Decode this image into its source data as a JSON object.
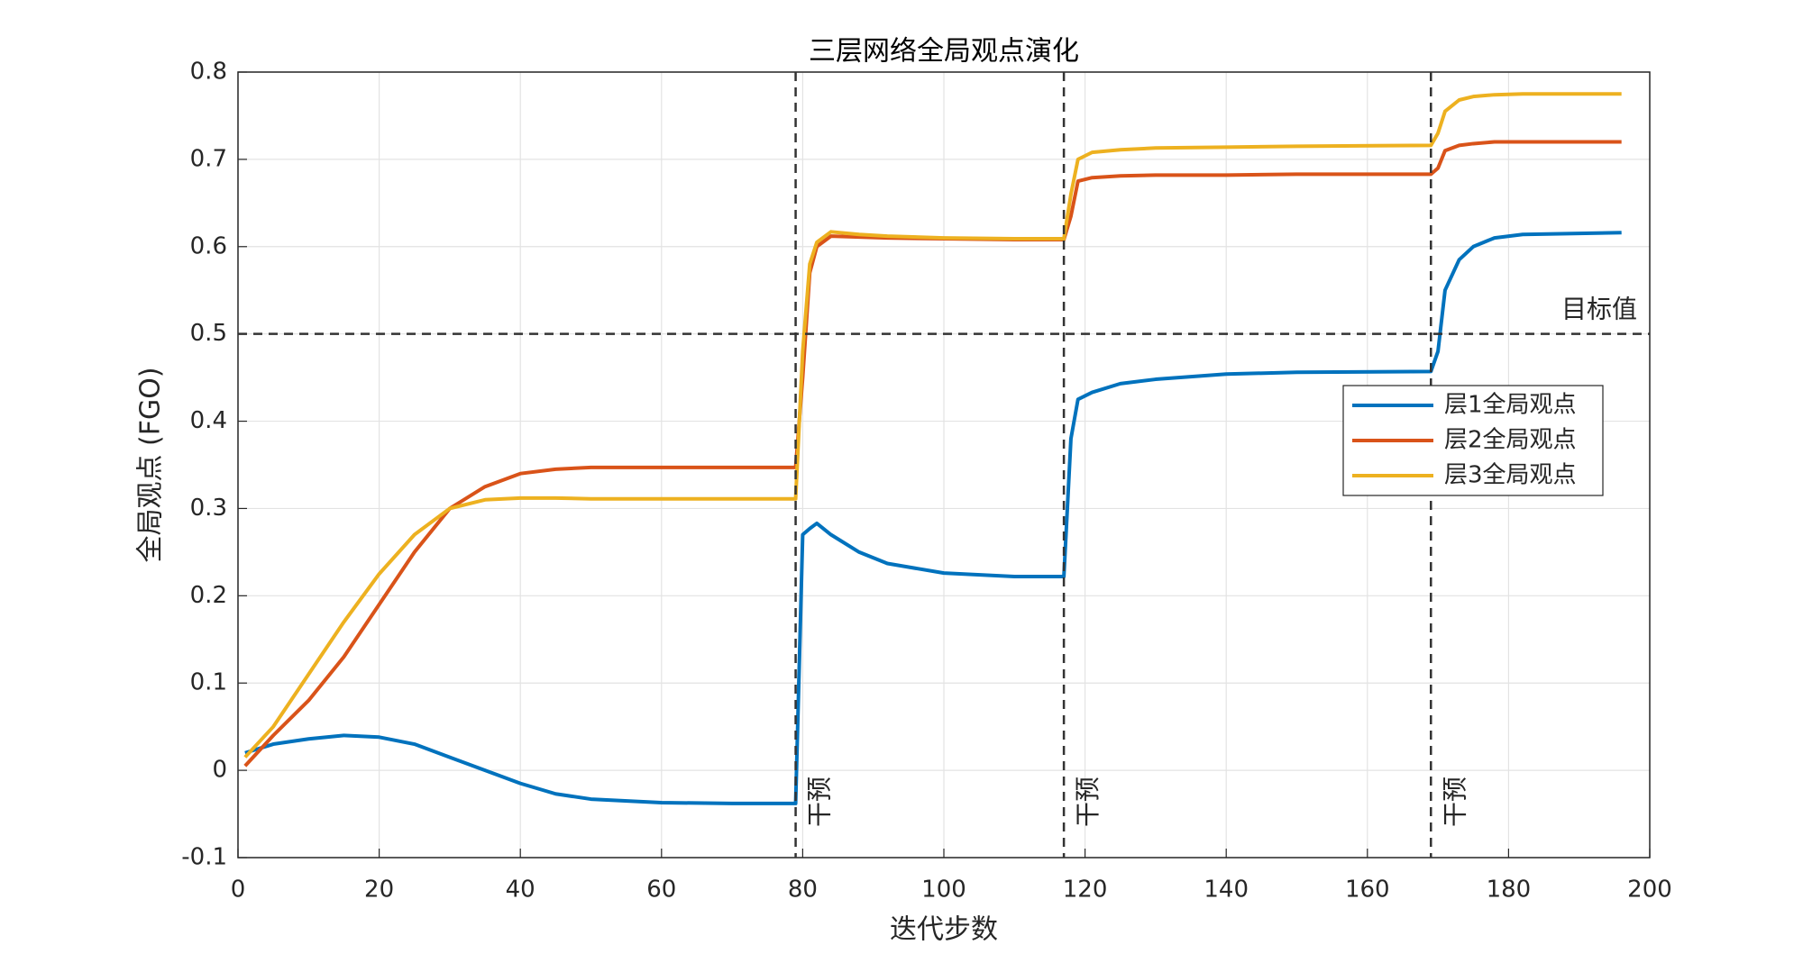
{
  "chart_data": {
    "type": "line",
    "title": "三层网络全局观点演化",
    "xlabel": "迭代步数",
    "ylabel": "全局观点 (FGO)",
    "x": [
      1,
      5,
      10,
      15,
      20,
      25,
      30,
      35,
      40,
      45,
      50,
      60,
      70,
      79,
      80,
      81,
      82,
      84,
      88,
      92,
      100,
      110,
      117,
      118,
      119,
      121,
      125,
      130,
      140,
      150,
      169,
      170,
      171,
      173,
      175,
      178,
      182,
      196
    ],
    "series": [
      {
        "name": "层1全局观点",
        "color": "#0072BD",
        "values": [
          0.02,
          0.03,
          0.036,
          0.04,
          0.038,
          0.03,
          0.015,
          0.0,
          -0.015,
          -0.027,
          -0.033,
          -0.037,
          -0.038,
          -0.038,
          0.27,
          0.277,
          0.283,
          0.27,
          0.25,
          0.237,
          0.226,
          0.222,
          0.222,
          0.38,
          0.425,
          0.433,
          0.443,
          0.448,
          0.454,
          0.456,
          0.457,
          0.48,
          0.55,
          0.585,
          0.6,
          0.61,
          0.614,
          0.616
        ]
      },
      {
        "name": "层2全局观点",
        "color": "#D95319",
        "values": [
          0.005,
          0.04,
          0.08,
          0.13,
          0.19,
          0.25,
          0.3,
          0.325,
          0.34,
          0.345,
          0.347,
          0.347,
          0.347,
          0.347,
          0.45,
          0.57,
          0.6,
          0.612,
          0.611,
          0.61,
          0.609,
          0.608,
          0.608,
          0.635,
          0.675,
          0.679,
          0.681,
          0.682,
          0.682,
          0.683,
          0.683,
          0.69,
          0.71,
          0.716,
          0.718,
          0.72,
          0.72,
          0.72
        ]
      },
      {
        "name": "层3全局观点",
        "color": "#EDB120",
        "values": [
          0.015,
          0.05,
          0.11,
          0.17,
          0.225,
          0.27,
          0.3,
          0.31,
          0.312,
          0.312,
          0.311,
          0.311,
          0.311,
          0.311,
          0.48,
          0.58,
          0.605,
          0.617,
          0.614,
          0.612,
          0.61,
          0.609,
          0.609,
          0.66,
          0.7,
          0.708,
          0.711,
          0.713,
          0.714,
          0.715,
          0.716,
          0.73,
          0.755,
          0.768,
          0.772,
          0.774,
          0.775,
          0.775
        ]
      }
    ],
    "target": {
      "value": 0.5,
      "label": "目标值"
    },
    "interventions": [
      {
        "x": 79,
        "label": "干预"
      },
      {
        "x": 117,
        "label": "干预"
      },
      {
        "x": 169,
        "label": "干预"
      }
    ],
    "xlim": [
      0,
      200
    ],
    "xticks": [
      0,
      20,
      40,
      60,
      80,
      100,
      120,
      140,
      160,
      180,
      200
    ],
    "ylim": [
      -0.1,
      0.8
    ],
    "yticks": [
      -0.1,
      0,
      0.1,
      0.2,
      0.3,
      0.4,
      0.5,
      0.6,
      0.7,
      0.8
    ],
    "grid": true,
    "legend": "right"
  }
}
